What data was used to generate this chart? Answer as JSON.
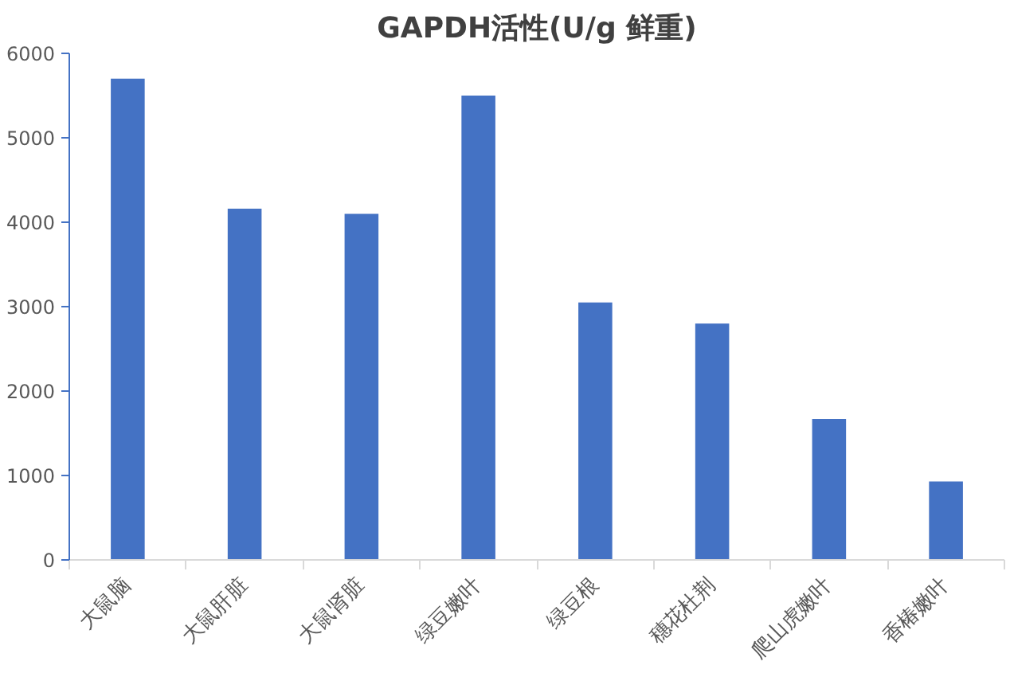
{
  "chart_data": {
    "type": "bar",
    "title": "GAPDH活性(U/g 鲜重)",
    "categories": [
      "大鼠脑",
      "大鼠肝脏",
      "大鼠肾脏",
      "绿豆嫩叶",
      "绿豆根",
      "穗花杜荆",
      "爬山虎嫩叶",
      "香椿嫩叶"
    ],
    "values": [
      5700,
      4160,
      4100,
      5500,
      3050,
      2800,
      1670,
      930
    ],
    "color": "#4472c4",
    "ylim": [
      0,
      6000
    ],
    "yticks": [
      0,
      1000,
      2000,
      3000,
      4000,
      5000,
      6000
    ],
    "grid": false
  }
}
